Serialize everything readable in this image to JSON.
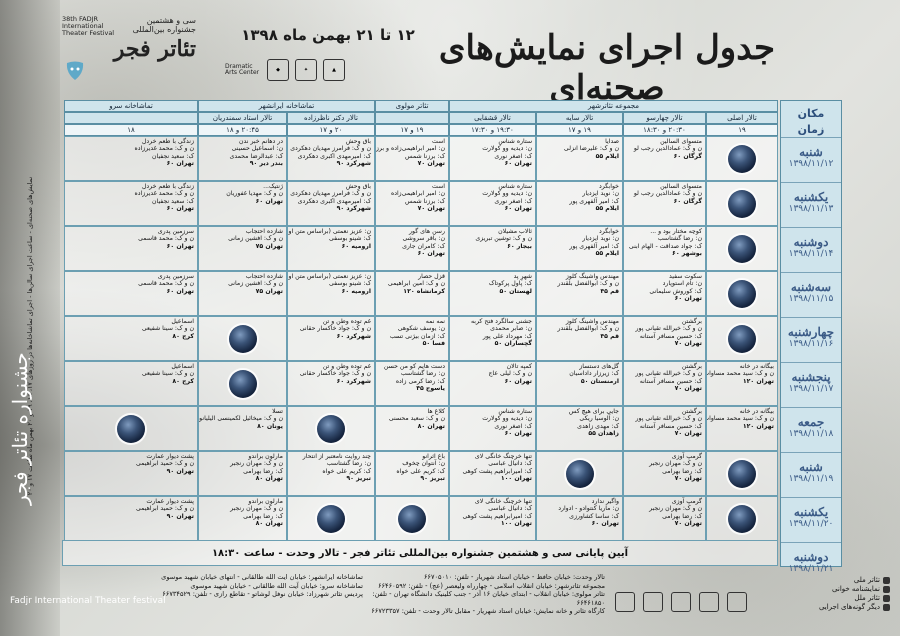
{
  "header": {
    "title": "جدول اجرای نمایش‌های صحنه‌ای",
    "dates": "۱۲ تا ۲۱ بهمن ماه ۱۳۹۸",
    "festival_sub": "سی و هشتمین جشنواره بین‌المللی",
    "festival_name": "تئاتر فجر",
    "festival_en": "38th FADJR International Theater Festival",
    "dac_label": "Dramatic Arts Center"
  },
  "side": {
    "place_label": "مکان",
    "time_label": "زمان"
  },
  "venue_groups": [
    {
      "label": "مجموعه تئاترشهر",
      "width": 329
    },
    {
      "label": "تئاتر مولوی",
      "width": 74
    },
    {
      "label": "تماشاخانه ایرانشهر",
      "width": 177
    },
    {
      "label": "تماشاخانه سرو",
      "width": 134
    }
  ],
  "venues": [
    {
      "label": "تالار اصلی",
      "width": 72
    },
    {
      "label": "تالار چهارسو",
      "width": 83
    },
    {
      "label": "تالار سایه",
      "width": 87
    },
    {
      "label": "تالار قشقایی",
      "width": 87
    },
    {
      "label": "",
      "width": 74
    },
    {
      "label": "تالار دکتر ناظرزاده",
      "width": 88
    },
    {
      "label": "تالار استاد سمندریان",
      "width": 89
    },
    {
      "label": "",
      "width": 134
    }
  ],
  "times": [
    "۱۹",
    "۲۰:۳۰ و ۱۸:۳۰",
    "۱۹ و ۱۷",
    "۱۹:۳۰ و ۱۷:۳۰",
    "۱۹ و ۱۷",
    "۲۰ و ۱۷",
    "۲۰:۴۵ و ۱۸",
    "۱۸"
  ],
  "days": [
    {
      "name": "شنبه",
      "date": "۱۳۹۸/۱۱/۱۲"
    },
    {
      "name": "یکشنبه",
      "date": "۱۳۹۸/۱۱/۱۳"
    },
    {
      "name": "دوشنبه",
      "date": "۱۳۹۸/۱۱/۱۴"
    },
    {
      "name": "سه‌شنبه",
      "date": "۱۳۹۸/۱۱/۱۵"
    },
    {
      "name": "چهارشنبه",
      "date": "۱۳۹۸/۱۱/۱۶"
    },
    {
      "name": "پنجشنبه",
      "date": "۱۳۹۸/۱۱/۱۷"
    },
    {
      "name": "جمعه",
      "date": "۱۳۹۸/۱۱/۱۸"
    },
    {
      "name": "شنبه",
      "date": "۱۳۹۸/۱۱/۱۹"
    },
    {
      "name": "یکشنبه",
      "date": "۱۳۹۸/۱۱/۲۰"
    },
    {
      "name": "دوشنبه",
      "date": "۱۳۹۸/۱۱/۲۱"
    }
  ],
  "rows": [
    [
      {
        "disc": true
      },
      {
        "lines": [
          "متسوای السالین",
          "ن و ک: عمادالدین رجب لو"
        ],
        "city": "گرگان ۶۰"
      },
      {
        "lines": [
          "صدایا",
          "ن و ک: علیرضا انزلی"
        ],
        "city": "ایلام ۵۵"
      },
      {
        "lines": [
          "ستاره شناس",
          "ن: دیدیه وو کولارت",
          "ک: اصغر نوری"
        ],
        "city": "تهران ۶۰"
      },
      {
        "lines": [
          "است",
          "ن: امیر ابراهیمی‌زاده و برزنا شمس",
          "ک: برزنا شمس"
        ],
        "city": "تهران ۷۰"
      },
      {
        "lines": [
          "باق وحش",
          "ن و ک: فرامرز مهدیان دهکردی",
          "ک: امیرمهدی اکبری دهکردی"
        ],
        "city": "شهرکرد ۹۰"
      },
      {
        "lines": [
          "در دهانم خبر ندن",
          "ن: اسماعیل حسینی",
          "ک: عبدالرضا محمدی"
        ],
        "city": "بندر دیر ۹۰"
      },
      {
        "lines": [
          "زندگی با طعم خردل",
          "ن و ک: محمد غدیرزاده",
          "ک: سعید نجفیان"
        ],
        "city": "تهران ۶۰"
      }
    ],
    [
      {
        "disc": true
      },
      {
        "lines": [
          "متسوای السالین",
          "ن و ک: عمادالدین رجب لو"
        ],
        "city": "گرگان ۶۰"
      },
      {
        "lines": [
          "خوابگرد",
          "ن: نوید ایزدیار",
          "ک: امیر آلفهری پور"
        ],
        "city": "ایلام ۵۵"
      },
      {
        "lines": [
          "ستاره شناس",
          "ن: دیدیه وو کولارت",
          "ک: اصغر نوری"
        ],
        "city": "تهران ۶۰"
      },
      {
        "lines": [
          "است",
          "ن: امیر ابراهیمی‌زاده",
          "ک: برزنا شمس"
        ],
        "city": "تهران ۷۰"
      },
      {
        "lines": [
          "باق وحش",
          "ن و ک: فرامرز مهدیان دهکردی",
          "ک: امیرمهدی اکبری دهکردی"
        ],
        "city": "شهرکرد ۹۰"
      },
      {
        "lines": [
          "ژنتیک...",
          "ن و ک: مهدیا غفوریان"
        ],
        "city": "تهران ۶۰"
      },
      {
        "lines": [
          "زندگی با طعم خردل",
          "ن و ک: محمد غدیرزاده",
          "ک: سعید نجفیان"
        ],
        "city": "تهران ۶۰"
      }
    ],
    [
      {
        "disc": true
      },
      {
        "lines": [
          "کوچه مختار بود و ...",
          "ن: رضا گشتاسب",
          "ک: جواد صداقت - الهام ابنی"
        ],
        "city": "بوشهر ۶۰"
      },
      {
        "lines": [
          "خوابگرد",
          "ن: نوید ایزدیار",
          "ک: امیر آلفهری پور"
        ],
        "city": "ایلام ۵۵"
      },
      {
        "lines": [
          "ثالاب مشیلان",
          "ن و ک: توشین تبریزی"
        ],
        "city": "بیجار ۶۰"
      },
      {
        "lines": [
          "رسن های گور",
          "ن: باقر سروشی",
          "ک: کامران جاری"
        ],
        "city": "تهران ۶۰"
      },
      {
        "lines": [
          "ن: عزیز نعمتی (براساس متن اوریبه)",
          "ک: شینو بوسفی"
        ],
        "city": "ارومیه ۶۰"
      },
      {
        "lines": [
          "شازده احتجاب",
          "ن و ک: افشین زمانی"
        ],
        "city": "تهران ۷۵"
      },
      {
        "lines": [
          "سرزمین پدری",
          "ن و ک: محمد قاسمی"
        ],
        "city": "تهران ۶۰"
      }
    ],
    [
      {
        "disc": true
      },
      {
        "lines": [
          "سکوت سفید",
          "ن: تام استوپارد",
          "ک: کوروش سلیمانی"
        ],
        "city": "تهران ۶۰"
      },
      {
        "lines": [
          "مهندس واشینگ کلوز",
          "ن و ک: ابوالفضل بلقندر"
        ],
        "city": "قم ۴۵"
      },
      {
        "lines": [
          "شهرِ پد",
          "ک: پاول پرکوتاک"
        ],
        "city": "لهستان ۵۰"
      },
      {
        "lines": [
          "قزل حصار",
          "ن و ک: امین ابراهیمی"
        ],
        "city": "کرمانشاه ۱۲۰"
      },
      {
        "lines": [
          "ن: عزیز نعمتی (براساس متن اوریبه)",
          "ک: شینو بوسفی"
        ],
        "city": "ارومیه ۶۰"
      },
      {
        "lines": [
          "شازده احتجاب",
          "ن و ک: افشین زمانی"
        ],
        "city": "تهران ۷۵"
      },
      {
        "lines": [
          "سرزمین پدری",
          "ن و ک: محمد قاسمی"
        ],
        "city": "تهران ۶۰"
      }
    ],
    [
      {
        "disc": true
      },
      {
        "lines": [
          "برگشتن",
          "ن و ک: خیرالله تقیانی پور",
          "ک: حسین مسافر آستانه"
        ],
        "city": "تهران ۷۰"
      },
      {
        "lines": [
          "مهندس واشینگ کلوز",
          "ن و ک: ابوالفضل بلقندر"
        ],
        "city": "قم ۴۵"
      },
      {
        "lines": [
          "جشنی سالگرد فتح کربه",
          "ن: صابر محمدی",
          "ک: مهرداد علی پور"
        ],
        "city": "گچساران ۵۰"
      },
      {
        "lines": [
          "نمه نمه",
          "ن: یوسف شکوهی",
          "ک: ازمان بیژنی تسب"
        ],
        "city": "فسا ۵۰"
      },
      {
        "lines": [
          "غم توده وطن و تن",
          "ن و ک: جواد خاکسار حقانی"
        ],
        "city": "شهرکرد ۶۰"
      },
      {
        "disc": true
      },
      {
        "lines": [
          "اسماعیل",
          "ن و ک: سینا شفیعی"
        ],
        "city": "کرج ۸۰"
      }
    ],
    [
      {
        "lines": [
          "بیگانه در خانه",
          "ن و ک: سید محمد مساوات"
        ],
        "city": "تهران ۱۲۰"
      },
      {
        "lines": [
          "برگشتن",
          "ن و ک: خیرالله تقیانی پور",
          "ک: حسین مسافر آستانه"
        ],
        "city": "تهران ۷۰"
      },
      {
        "lines": [
          "گل‌های دستساز",
          "ک: زیرزار داداسیان"
        ],
        "city": "ارمنستان ۵۰"
      },
      {
        "lines": [
          "کمپه تالان",
          "ن و ک: لیلی عاج"
        ],
        "city": "تهران ۶۰"
      },
      {
        "lines": [
          "دست هایم کو من حسن",
          "ن: رضا گشتاسب",
          "ک: رضا کرمی زاده"
        ],
        "city": "یاسوج ۴۵"
      },
      {
        "lines": [
          "غم توده وطن و تن",
          "ن و ک: جواد خاکسار حقانی"
        ],
        "city": "شهرکرد ۶۰"
      },
      {
        "disc": true
      },
      {
        "lines": [
          "اسماعیل",
          "ن و ک: سینا شفیعی"
        ],
        "city": "کرج ۸۰"
      }
    ],
    [
      {
        "lines": [
          "بیگانه در خانه",
          "ن و ک: سید محمد مساوات"
        ],
        "city": "تهران ۱۲۰"
      },
      {
        "lines": [
          "برگشتن",
          "ن و ک: خیرالله تقیانی پور",
          "ک: حسین مسافر آستانه"
        ],
        "city": "تهران ۷۰"
      },
      {
        "lines": [
          "جایی برای هیچ کس",
          "ن: آلوسیا ریکی",
          "ک: مهدی زاهدی"
        ],
        "city": "زاهدان ۵۵"
      },
      {
        "lines": [
          "ستاره شناس",
          "ن: دیدیه وو کولارت",
          "ک: اصغر نوری"
        ],
        "city": "تهران ۶۰"
      },
      {
        "lines": [
          "کلاغ ها",
          "ن و ک: سعید محسنی"
        ],
        "city": "تهران ۸۰"
      },
      {
        "disc": true
      },
      {
        "lines": [
          "تسلا",
          "ن و ک: میخائیل لکمینسی الیلیانوف"
        ],
        "city": "یونان ۸۰"
      },
      {
        "disc": true
      }
    ],
    [
      {
        "disc": true
      },
      {
        "lines": [
          "گرمپ آوزی",
          "ن و ک: مهران رنجبر",
          "ک: رضا بهرامی"
        ],
        "city": "تهران ۷۰"
      },
      {
        "disc": true
      },
      {
        "lines": [
          "تنها خرچنگ خانگی لای",
          "ک: دانیال عباسی",
          "ک: امیرابراهیم پشت کوهی"
        ],
        "city": "تهران ۱۰۰"
      },
      {
        "lines": [
          "باغ اثرانو",
          "ن: آنتوان چخوف",
          "ک: کریم علی خواه"
        ],
        "city": "تبریز ۹۰"
      },
      {
        "lines": [
          "چند روایت نامعتبر از انتحار",
          "ن: رضا گشتاسب",
          "ک: کریم علی خواه"
        ],
        "city": "تبریز ۹۰"
      },
      {
        "lines": [
          "مارلون براندو",
          "ن و ک: مهران رنجبر",
          "ک: رضا بهرامی"
        ],
        "city": "تهران ۸۰"
      },
      {
        "lines": [
          "پشت دیوار عمارت",
          "ن و ک: حمید ابراهیمی"
        ],
        "city": "تهران ۹۰"
      }
    ],
    [
      {
        "disc": true
      },
      {
        "lines": [
          "گرمپ آوزی",
          "ن و ک: مهران رنجبر",
          "ک: رضا بهرامی"
        ],
        "city": "تهران ۷۰"
      },
      {
        "lines": [
          "واگیر ندارد",
          "ن: ماریا کنتوادو - ادوارد",
          "ک: ساسا کشاورزی"
        ],
        "city": "تهران ۶۰"
      },
      {
        "lines": [
          "تنها خرچنگ خانگی لای",
          "ک: دانیال عباسی",
          "ک: امیرابراهیم پشت کوهی"
        ],
        "city": "تهران ۱۰۰"
      },
      {
        "disc": true
      },
      {
        "disc": true
      },
      {
        "lines": [
          "مارلون براندو",
          "ن و ک: مهران رنجبر",
          "ک: رضا بهرامی"
        ],
        "city": "تهران ۸۰"
      },
      {
        "lines": [
          "پشت دیوار عمارت",
          "ن و ک: حمید ابراهیمی"
        ],
        "city": "تهران ۹۰"
      }
    ]
  ],
  "closing": "آیین پایانی سی و هشتمین جشنواره بین‌المللی تئاتر فجر - تالار وحدت - ساعت ۱۸:۳۰",
  "vertical_note": "نمایش‌های صحنه‌ای - ساعت اجرای سالن‌ها - اجرای تماشاخانه‌ها در روزهای ۱۷، ۱۸، ۱۹ و ۲۰ بهمن ماه ساعت ۱۷ و ۲۰",
  "watermark": {
    "fa": "جشنواره تئاتر فجر",
    "en": "Fadjr International Theater festival"
  },
  "address_right": [
    "تالار وحدت: خیابان حافظ - خیابان استاد شهریار - تلفن: ۶۶۷۰۵۰۱۰",
    "مجموعه تئاترشهر: خیابان انقلاب اسلامی - چهارراه ولیعصر (عج) - تلفن: ۶۶۴۶۰۵۹۲",
    "تئاتر مولوی: خیابان انقلاب - ابتدای خیابان ۱۶ آذر - جنب کلینیک دانشگاه تهران - تلفن: ۶۶۴۶۱۸۵۰",
    "کارگاه تئاتر و خانه نمایش: خیابان استاد شهریار - مقابل تالار وحدت - تلفن: ۶۶۷۲۳۳۵۷"
  ],
  "address_left": [
    "تماشاخانه ایرانشهر: خیابان ایت الله طالقانی - انتهای خیابان شهید موسوی",
    "تماشاخانه سرو: خیابان آیت الله طالقانی - خیابان شهید موسوی",
    "پردیس تئاتر شهرزاد: خیابان نوفل لوشاتو - تقاطع رازی - تلفن: ۶۶۷۳۴۵۲۹"
  ],
  "legend": [
    "تئاتر ملی",
    "نمایشنامه خوانی",
    "تئاتر ملل",
    "دیگر گونه‌های اجرایی"
  ]
}
